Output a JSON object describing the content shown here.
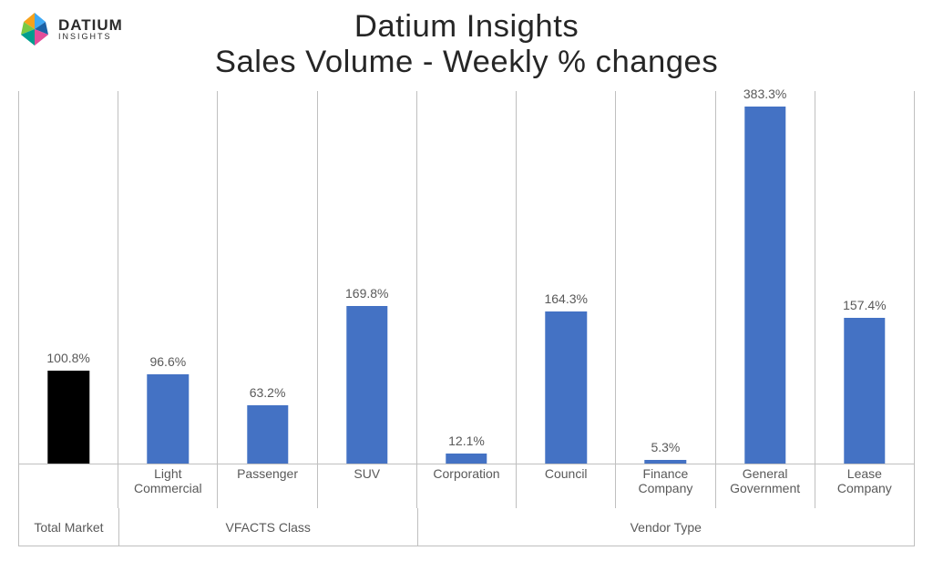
{
  "logo": {
    "brand": "DATIUM",
    "sub": "INSIGHTS"
  },
  "title": {
    "line1": "Datium Insights",
    "line2": "Sales Volume - Weekly % changes",
    "fontsize_pt": 26,
    "color": "#262626"
  },
  "chart": {
    "type": "bar",
    "background_color": "#ffffff",
    "gridline_color": "#bfbfbf",
    "axis_tick_fontsize_pt": 14,
    "data_label_fontsize_pt": 14,
    "group_label_fontsize_pt": 14,
    "bar_width_ratio": 0.42,
    "value_max_for_scale": 400,
    "label_color": "#595959",
    "value_suffix": "%",
    "groups": [
      {
        "label": "Total Market",
        "bars": [
          {
            "category": "",
            "value": 100.8,
            "color": "#000000"
          }
        ]
      },
      {
        "label": "VFACTS Class",
        "bars": [
          {
            "category": "Light Commercial",
            "value": 96.6,
            "color": "#4472c4"
          },
          {
            "category": "Passenger",
            "value": 63.2,
            "color": "#4472c4"
          },
          {
            "category": "SUV",
            "value": 169.8,
            "color": "#4472c4"
          }
        ]
      },
      {
        "label": "Vendor Type",
        "bars": [
          {
            "category": "Corporation",
            "value": 12.1,
            "color": "#4472c4"
          },
          {
            "category": "Council",
            "value": 164.3,
            "color": "#4472c4"
          },
          {
            "category": "Finance Company",
            "value": 5.3,
            "color": "#4472c4"
          },
          {
            "category": "General Government",
            "value": 383.3,
            "color": "#4472c4"
          },
          {
            "category": "Lease Company",
            "value": 157.4,
            "color": "#4472c4"
          }
        ]
      }
    ]
  }
}
